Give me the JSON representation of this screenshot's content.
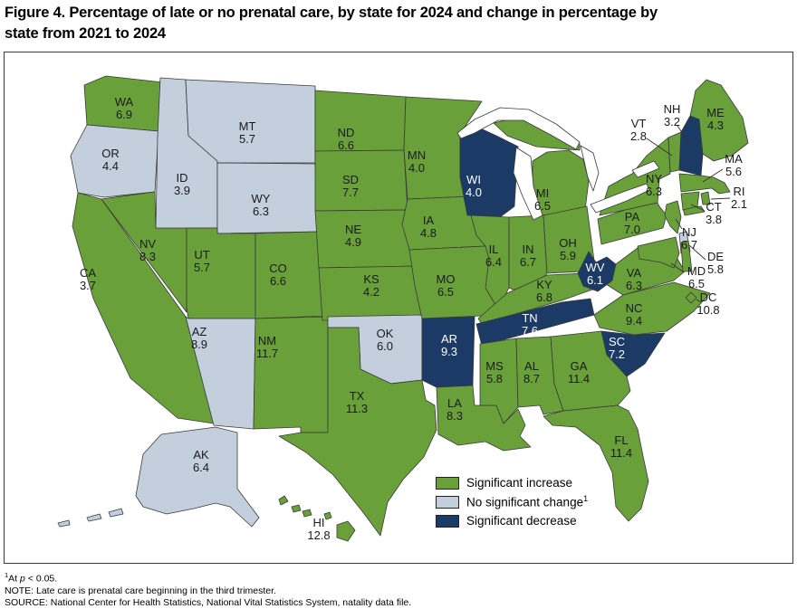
{
  "title": {
    "line1": "Figure 4. Percentage of late or no prenatal care, by state for 2024 and change in percentage by",
    "line2": "state from 2021 to 2024"
  },
  "legend": {
    "items": [
      {
        "id": "increase",
        "label": "Significant increase",
        "sup": "",
        "color": "#69A03A"
      },
      {
        "id": "no_change",
        "label": "No significant change",
        "sup": "1",
        "color": "#C4CFDD"
      },
      {
        "id": "decrease",
        "label": "Significant decrease",
        "sup": "",
        "color": "#1B3A66"
      }
    ]
  },
  "chart_data": {
    "type": "heatmap",
    "subtype": "us_state_choropleth",
    "title": "Percentage of late or no prenatal care by state, 2024, with change category from 2021 to 2024",
    "unit": "percent",
    "legend_position": "bottom-right",
    "categories_legend": [
      "Significant increase",
      "No significant change",
      "Significant decrease"
    ],
    "states": [
      {
        "abbr": "WA",
        "value": 6.9,
        "text": "6.9",
        "category": "increase"
      },
      {
        "abbr": "OR",
        "value": 4.4,
        "text": "4.4",
        "category": "no_change"
      },
      {
        "abbr": "CA",
        "value": 3.7,
        "text": "3.7",
        "category": "increase"
      },
      {
        "abbr": "NV",
        "value": 8.3,
        "text": "8.3",
        "category": "increase"
      },
      {
        "abbr": "ID",
        "value": 3.9,
        "text": "3.9",
        "category": "no_change"
      },
      {
        "abbr": "MT",
        "value": 5.7,
        "text": "5.7",
        "category": "no_change"
      },
      {
        "abbr": "WY",
        "value": 6.3,
        "text": "6.3",
        "category": "no_change"
      },
      {
        "abbr": "UT",
        "value": 5.7,
        "text": "5.7",
        "category": "increase"
      },
      {
        "abbr": "CO",
        "value": 6.6,
        "text": "6.6",
        "category": "increase"
      },
      {
        "abbr": "AZ",
        "value": 8.9,
        "text": "8.9",
        "category": "no_change"
      },
      {
        "abbr": "NM",
        "value": 11.7,
        "text": "11.7",
        "category": "increase"
      },
      {
        "abbr": "ND",
        "value": 6.6,
        "text": "6.6",
        "category": "increase"
      },
      {
        "abbr": "SD",
        "value": 7.7,
        "text": "7.7",
        "category": "increase"
      },
      {
        "abbr": "NE",
        "value": 4.9,
        "text": "4.9",
        "category": "increase"
      },
      {
        "abbr": "KS",
        "value": 4.2,
        "text": "4.2",
        "category": "increase"
      },
      {
        "abbr": "OK",
        "value": 6.0,
        "text": "6.0",
        "category": "no_change"
      },
      {
        "abbr": "TX",
        "value": 11.3,
        "text": "11.3",
        "category": "increase"
      },
      {
        "abbr": "MN",
        "value": 4.0,
        "text": "4.0",
        "category": "increase"
      },
      {
        "abbr": "IA",
        "value": 4.8,
        "text": "4.8",
        "category": "increase"
      },
      {
        "abbr": "MO",
        "value": 6.5,
        "text": "6.5",
        "category": "increase"
      },
      {
        "abbr": "AR",
        "value": 9.3,
        "text": "9.3",
        "category": "decrease"
      },
      {
        "abbr": "LA",
        "value": 8.3,
        "text": "8.3",
        "category": "increase"
      },
      {
        "abbr": "WI",
        "value": 4.0,
        "text": "4.0",
        "category": "decrease"
      },
      {
        "abbr": "IL",
        "value": 6.4,
        "text": "6.4",
        "category": "increase"
      },
      {
        "abbr": "IN",
        "value": 6.7,
        "text": "6.7",
        "category": "increase"
      },
      {
        "abbr": "MI",
        "value": 6.5,
        "text": "6.5",
        "category": "increase"
      },
      {
        "abbr": "OH",
        "value": 5.9,
        "text": "5.9",
        "category": "increase"
      },
      {
        "abbr": "KY",
        "value": 6.8,
        "text": "6.8",
        "category": "increase"
      },
      {
        "abbr": "TN",
        "value": 7.6,
        "text": "7.6",
        "category": "decrease"
      },
      {
        "abbr": "MS",
        "value": 5.8,
        "text": "5.8",
        "category": "increase"
      },
      {
        "abbr": "AL",
        "value": 8.7,
        "text": "8.7",
        "category": "increase"
      },
      {
        "abbr": "GA",
        "value": 11.4,
        "text": "11.4",
        "category": "increase"
      },
      {
        "abbr": "FL",
        "value": 11.4,
        "text": "11.4",
        "category": "increase"
      },
      {
        "abbr": "SC",
        "value": 7.2,
        "text": "7.2",
        "category": "decrease"
      },
      {
        "abbr": "NC",
        "value": 9.4,
        "text": "9.4",
        "category": "increase"
      },
      {
        "abbr": "VA",
        "value": 6.3,
        "text": "6.3",
        "category": "increase"
      },
      {
        "abbr": "WV",
        "value": 6.1,
        "text": "6.1",
        "category": "decrease"
      },
      {
        "abbr": "PA",
        "value": 7.0,
        "text": "7.0",
        "category": "increase"
      },
      {
        "abbr": "NY",
        "value": 6.3,
        "text": "6.3",
        "category": "increase"
      },
      {
        "abbr": "NJ",
        "value": 6.7,
        "text": "6.7",
        "category": "increase"
      },
      {
        "abbr": "DE",
        "value": 5.8,
        "text": "5.8",
        "category": "no_change"
      },
      {
        "abbr": "MD",
        "value": 6.5,
        "text": "6.5",
        "category": "increase"
      },
      {
        "abbr": "DC",
        "value": 10.8,
        "text": "10.8",
        "category": "increase"
      },
      {
        "abbr": "CT",
        "value": 3.8,
        "text": "3.8",
        "category": "increase"
      },
      {
        "abbr": "RI",
        "value": 2.1,
        "text": "2.1",
        "category": "increase"
      },
      {
        "abbr": "MA",
        "value": 5.6,
        "text": "5.6",
        "category": "increase"
      },
      {
        "abbr": "VT",
        "value": 2.8,
        "text": "2.8",
        "category": "increase"
      },
      {
        "abbr": "NH",
        "value": 3.2,
        "text": "3.2",
        "category": "decrease"
      },
      {
        "abbr": "ME",
        "value": 4.3,
        "text": "4.3",
        "category": "increase"
      },
      {
        "abbr": "AK",
        "value": 6.4,
        "text": "6.4",
        "category": "no_change"
      },
      {
        "abbr": "HI",
        "value": 12.8,
        "text": "12.8",
        "category": "increase"
      }
    ]
  },
  "footnotes": {
    "f1_sup": "1",
    "f1_pre": "At ",
    "f1_italic": "p",
    "f1_post": " < 0.05.",
    "note": "NOTE: Late care is prenatal care beginning in the third trimester.",
    "source": "SOURCE: National Center for Health Statistics, National Vital Statistics System, natality data file."
  }
}
